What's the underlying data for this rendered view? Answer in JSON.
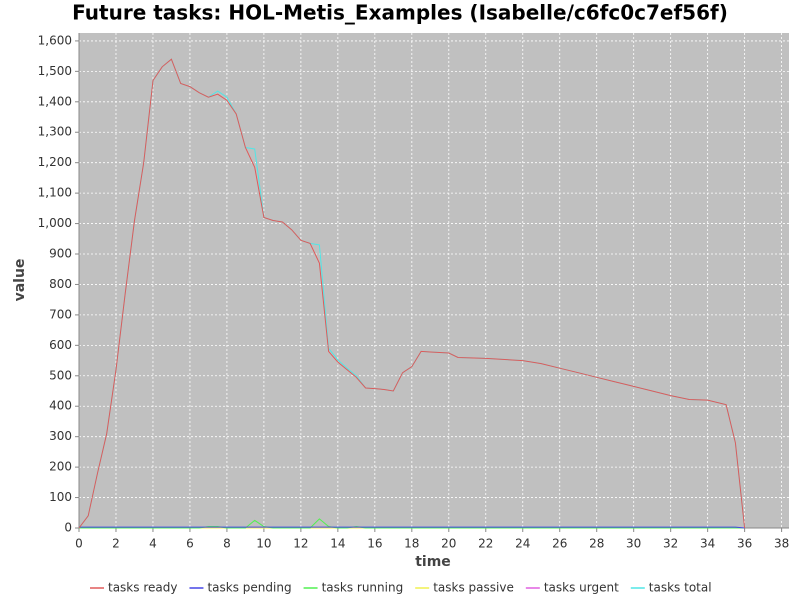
{
  "chart_data": {
    "type": "line",
    "title": "Future tasks: HOL-Metis_Examples (Isabelle/c6fc0c7ef56f)",
    "x_label": "time",
    "y_label": "value",
    "x": [
      0,
      0.5,
      1,
      1.5,
      2,
      2.5,
      3,
      3.5,
      4,
      4.5,
      5,
      5.5,
      6,
      6.5,
      7,
      7.5,
      8,
      8.5,
      9,
      9.5,
      10,
      10.5,
      11,
      11.5,
      12,
      12.5,
      13,
      13.5,
      14,
      14.5,
      15,
      15.5,
      16,
      16.5,
      17,
      17.5,
      18,
      18.5,
      19,
      20,
      20.5,
      22,
      24,
      25,
      26,
      27,
      28,
      29,
      30,
      31,
      32,
      33,
      34,
      35,
      35.5,
      36
    ],
    "series": [
      {
        "name": "tasks ready",
        "color": "#e05a5a",
        "values": [
          0,
          40,
          180,
          310,
          520,
          770,
          1010,
          1200,
          1470,
          1515,
          1540,
          1460,
          1450,
          1430,
          1415,
          1425,
          1405,
          1360,
          1250,
          1185,
          1020,
          1010,
          1005,
          980,
          945,
          935,
          870,
          580,
          545,
          520,
          495,
          460,
          458,
          455,
          450,
          510,
          530,
          580,
          578,
          575,
          560,
          557,
          550,
          540,
          525,
          510,
          495,
          480,
          465,
          450,
          435,
          422,
          420,
          405,
          280,
          0
        ]
      },
      {
        "name": "tasks pending",
        "color": "#4646e6",
        "values": [
          3,
          3,
          3,
          3,
          3,
          3,
          3,
          3,
          3,
          3,
          3,
          3,
          3,
          3,
          3,
          3,
          3,
          3,
          3,
          3,
          3,
          3,
          3,
          3,
          3,
          3,
          3,
          3,
          3,
          3,
          3,
          3,
          3,
          3,
          3,
          3,
          3,
          3,
          3,
          3,
          3,
          3,
          3,
          3,
          3,
          3,
          3,
          3,
          3,
          3,
          3,
          3,
          3,
          3,
          3,
          0
        ]
      },
      {
        "name": "tasks running",
        "color": "#50f050",
        "values": [
          0,
          0,
          0,
          0,
          0,
          0,
          0,
          0,
          0,
          0,
          0,
          0,
          0,
          0,
          5,
          5,
          0,
          0,
          0,
          25,
          5,
          0,
          0,
          0,
          0,
          0,
          30,
          5,
          0,
          0,
          5,
          0,
          0,
          0,
          0,
          0,
          0,
          0,
          0,
          0,
          0,
          0,
          0,
          0,
          0,
          0,
          0,
          0,
          0,
          0,
          0,
          0,
          0,
          0,
          0,
          0
        ]
      },
      {
        "name": "tasks passive",
        "color": "#f0f050",
        "values": [
          0,
          0,
          0,
          0,
          0,
          0,
          0,
          0,
          0,
          0,
          0,
          0,
          0,
          0,
          0,
          0,
          0,
          0,
          0,
          0,
          0,
          0,
          0,
          0,
          0,
          0,
          0,
          0,
          0,
          0,
          0,
          0,
          0,
          0,
          0,
          0,
          0,
          0,
          0,
          0,
          0,
          0,
          0,
          0,
          0,
          0,
          0,
          0,
          0,
          0,
          0,
          0,
          0,
          0,
          0,
          0
        ]
      },
      {
        "name": "tasks urgent",
        "color": "#e060e0",
        "values": [
          0,
          0,
          0,
          0,
          0,
          0,
          0,
          0,
          0,
          0,
          0,
          0,
          0,
          0,
          0,
          0,
          0,
          0,
          0,
          0,
          0,
          0,
          0,
          0,
          0,
          0,
          0,
          0,
          0,
          0,
          0,
          0,
          0,
          0,
          0,
          0,
          0,
          0,
          0,
          0,
          0,
          0,
          0,
          0,
          0,
          0,
          0,
          0,
          0,
          0,
          0,
          0,
          0,
          0,
          0,
          0
        ]
      },
      {
        "name": "tasks total",
        "color": "#50e6e6",
        "values": [
          0,
          40,
          180,
          310,
          520,
          770,
          1010,
          1200,
          1470,
          1515,
          1540,
          1460,
          1450,
          1430,
          1415,
          1435,
          1415,
          1360,
          1250,
          1245,
          1020,
          1010,
          1005,
          980,
          945,
          935,
          930,
          590,
          552,
          525,
          500,
          460,
          458,
          455,
          450,
          510,
          530,
          580,
          578,
          575,
          560,
          557,
          550,
          540,
          525,
          510,
          495,
          480,
          465,
          450,
          435,
          422,
          420,
          405,
          280,
          0
        ]
      }
    ],
    "xlim": [
      0,
      38.4
    ],
    "xticks": [
      0,
      2,
      4,
      6,
      8,
      10,
      12,
      14,
      16,
      18,
      20,
      22,
      24,
      26,
      28,
      30,
      32,
      34,
      36,
      38
    ],
    "ylim": [
      0,
      1626
    ],
    "yticks": [
      0,
      100,
      200,
      300,
      400,
      500,
      600,
      700,
      800,
      900,
      {
        "value": 1000,
        "label": "1,000"
      },
      {
        "value": 1100,
        "label": "1,100"
      },
      {
        "value": 1200,
        "label": "1,200"
      },
      {
        "value": 1300,
        "label": "1,300"
      },
      {
        "value": 1400,
        "label": "1,400"
      },
      {
        "value": 1500,
        "label": "1,500"
      },
      {
        "value": 1600,
        "label": "1,600"
      }
    ],
    "grid": true,
    "legend": "bottom"
  }
}
